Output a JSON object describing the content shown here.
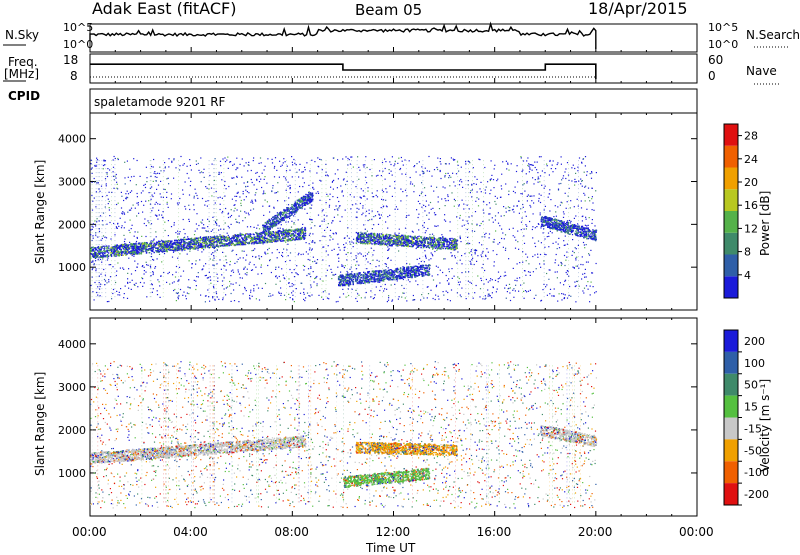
{
  "header": {
    "station_title": "Adak East (fitACF)",
    "beam": "Beam 05",
    "date": "18/Apr/2015"
  },
  "nsky_panel": {
    "left_label": "N.Sky",
    "right_label": "N.Search",
    "ticks_left": [
      "10^5",
      "10^0"
    ],
    "ticks_right": [
      "10^5",
      "10^0"
    ]
  },
  "freq_panel": {
    "left_label_line1": "Freq.",
    "left_label_line2": "[MHz]",
    "right_label": "Nave",
    "ticks_left": [
      "18",
      "8"
    ],
    "ticks_right": [
      "60",
      "0"
    ],
    "freq_steps": [
      {
        "start_h": 0,
        "end_h": 10,
        "freq_mhz": 13.5
      },
      {
        "start_h": 10,
        "end_h": 18,
        "freq_mhz": 11.5
      },
      {
        "start_h": 18,
        "end_h": 20,
        "freq_mhz": 13.5
      }
    ]
  },
  "cpid_panel": {
    "label": "CPID",
    "mode": "spaletamode 9201 RF"
  },
  "chart_data": [
    {
      "type": "heatmap",
      "name": "power",
      "ylabel": "Slant Range [km]",
      "ylim": [
        0,
        4600
      ],
      "yticks": [
        "1000",
        "2000",
        "3000",
        "4000"
      ],
      "xlim_hours": [
        0,
        24
      ],
      "colorbar_label": "Power [dB]",
      "colorbar_ticks": [
        "4",
        "8",
        "12",
        "16",
        "20",
        "24",
        "28"
      ],
      "colorbar_range": [
        0,
        30
      ],
      "colors": [
        "#1b1bd9",
        "#2f5fa8",
        "#3f8a6a",
        "#55b24a",
        "#b8c820",
        "#f0a000",
        "#f06000",
        "#e01010"
      ],
      "echo_bands": [
        {
          "start_h": 0,
          "end_h": 8.5,
          "range_start_km": 1350,
          "range_end_km": 1800,
          "level": 12
        },
        {
          "start_h": 6.8,
          "end_h": 8.8,
          "range_start_km": 1900,
          "range_end_km": 2700,
          "level": 8
        },
        {
          "start_h": 10.5,
          "end_h": 14.5,
          "range_start_km": 1700,
          "range_end_km": 1550,
          "level": 12
        },
        {
          "start_h": 9.8,
          "end_h": 13.4,
          "range_start_km": 700,
          "range_end_km": 950,
          "level": 8
        },
        {
          "start_h": 17.8,
          "end_h": 20,
          "range_start_km": 2100,
          "range_end_km": 1750,
          "level": 8
        }
      ]
    },
    {
      "type": "heatmap",
      "name": "velocity",
      "ylabel": "Slant Range [km]",
      "ylim": [
        0,
        4600
      ],
      "yticks": [
        "1000",
        "2000",
        "3000",
        "4000"
      ],
      "xlim_hours": [
        0,
        24
      ],
      "xticks": [
        "00:00",
        "04:00",
        "08:00",
        "12:00",
        "16:00",
        "20:00",
        "00:00"
      ],
      "xlabel": "Time UT",
      "colorbar_label": "Velocity [m s⁻¹]",
      "colorbar_ticks": [
        "200",
        "100",
        "50",
        "15",
        "-15",
        "-50",
        "-100",
        "-200"
      ],
      "colors": [
        "#1b1bd9",
        "#2f5fa8",
        "#3f8a6a",
        "#55c040",
        "#c8c8c8",
        "#f0a000",
        "#f06000",
        "#e01010"
      ],
      "echo_bands": [
        {
          "start_h": 0,
          "end_h": 8.5,
          "range_start_km": 1350,
          "range_end_km": 1750,
          "velocity": 0
        },
        {
          "start_h": 10.5,
          "end_h": 14.5,
          "range_start_km": 1600,
          "range_end_km": 1550,
          "velocity": -50
        },
        {
          "start_h": 10,
          "end_h": 13.4,
          "range_start_km": 800,
          "range_end_km": 1000,
          "velocity": 50
        },
        {
          "start_h": 17.8,
          "end_h": 20,
          "range_start_km": 2000,
          "range_end_km": 1750,
          "velocity": 0
        }
      ]
    }
  ]
}
